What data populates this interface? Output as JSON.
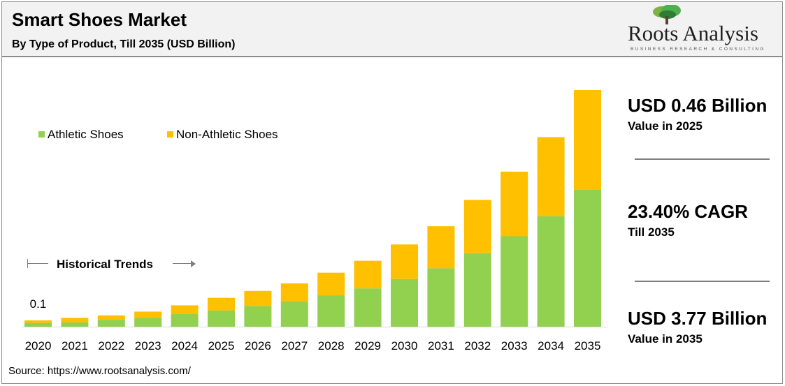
{
  "header": {
    "title": "Smart Shoes Market",
    "subtitle": "By Type of Product, Till 2035 (USD Billion)"
  },
  "logo": {
    "name": "Roots Analysis",
    "tagline": "BUSINESS RESEARCH & CONSULTING"
  },
  "historical": {
    "label": "Historical Trends"
  },
  "stats": [
    {
      "value": "USD 0.46 Billion",
      "caption": "Value in 2025"
    },
    {
      "value": "23.40% CAGR",
      "caption": "Till 2035"
    },
    {
      "value": "USD 3.77 Billion",
      "caption": "Value in 2035"
    }
  ],
  "source": "Source: https://www.rootsanalysis.com/",
  "colors": {
    "athletic": "#92d050",
    "non_athletic": "#ffc000"
  },
  "chart_data": {
    "type": "bar",
    "stacked": true,
    "categories": [
      "2020",
      "2021",
      "2022",
      "2023",
      "2024",
      "2025",
      "2026",
      "2027",
      "2028",
      "2029",
      "2030",
      "2031",
      "2032",
      "2033",
      "2034",
      "2035"
    ],
    "series": [
      {
        "name": "Athletic Shoes",
        "values": [
          0.06,
          0.07,
          0.11,
          0.14,
          0.2,
          0.26,
          0.33,
          0.4,
          0.5,
          0.61,
          0.76,
          0.93,
          1.17,
          1.44,
          1.76,
          2.18
        ]
      },
      {
        "name": "Non-Athletic Shoes",
        "values": [
          0.04,
          0.07,
          0.07,
          0.1,
          0.14,
          0.2,
          0.24,
          0.29,
          0.36,
          0.44,
          0.55,
          0.67,
          0.85,
          1.03,
          1.26,
          1.59
        ]
      }
    ],
    "data_labels": [
      {
        "category": "2020",
        "text": "0.1"
      }
    ],
    "ylim": [
      0,
      3.77
    ],
    "legend": "top-left",
    "grid": false
  }
}
